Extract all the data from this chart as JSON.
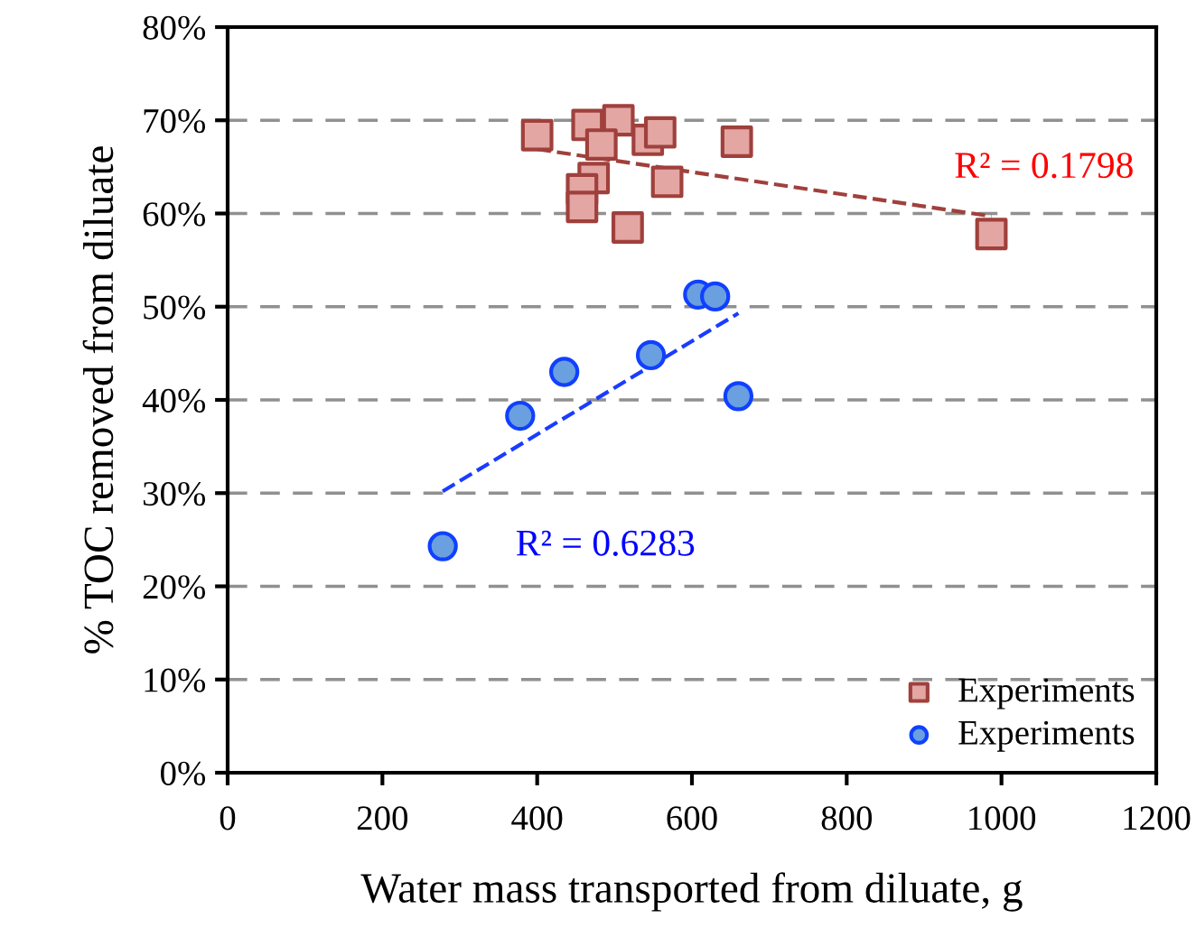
{
  "chart_data": {
    "type": "scatter",
    "xlabel": "Water mass transported from diluate, g",
    "ylabel": "% TOC removed from diluate",
    "series": [
      {
        "name": "Experiments",
        "marker": "square",
        "color": "#e3a6a3",
        "x": [
          400,
          465,
          505,
          483,
          543,
          559,
          658,
          473,
          458,
          458,
          517,
          568,
          987
        ],
        "values": [
          68.4,
          69.5,
          70.0,
          67.4,
          67.9,
          68.7,
          67.7,
          63.8,
          62.6,
          60.7,
          58.5,
          63.4,
          57.8
        ]
      },
      {
        "type": "line",
        "line_style": "dashed",
        "marker": "none",
        "color": "#a0403c",
        "x": [
          400,
          987
        ],
        "values": [
          66.9,
          59.7
        ]
      },
      {
        "name": "Experiments",
        "marker": "circle",
        "color": "#6a9fe0",
        "x": [
          435,
          547,
          608,
          630,
          660,
          378,
          278
        ],
        "values": [
          43.0,
          44.8,
          51.3,
          51.1,
          40.4,
          38.3,
          24.3
        ]
      },
      {
        "type": "line",
        "line_style": "dashed",
        "marker": "none",
        "color": "#1a3cff",
        "x": [
          278,
          660
        ],
        "values": [
          30.2,
          49.3
        ]
      }
    ],
    "annotations": [
      {
        "text": "R² = 0.1798",
        "x": 987,
        "y": 59.7
      },
      {
        "text": "R² = 0.6283",
        "x": 278,
        "y": 30.2
      }
    ],
    "xlim": [
      0,
      1200
    ],
    "xticks": [
      0,
      200,
      400,
      600,
      800,
      1000,
      1200
    ],
    "ylim": [
      0,
      80
    ],
    "yticks": [
      {
        "value": 0,
        "label": "0%"
      },
      {
        "value": 10,
        "label": "10%"
      },
      {
        "value": 20,
        "label": "20%"
      },
      {
        "value": 30,
        "label": "30%"
      },
      {
        "value": 40,
        "label": "40%"
      },
      {
        "value": 50,
        "label": "50%"
      },
      {
        "value": 60,
        "label": "60%"
      },
      {
        "value": 70,
        "label": "70%"
      },
      {
        "value": 80,
        "label": "80%"
      }
    ],
    "grid": "y",
    "legend": "bottom right"
  }
}
